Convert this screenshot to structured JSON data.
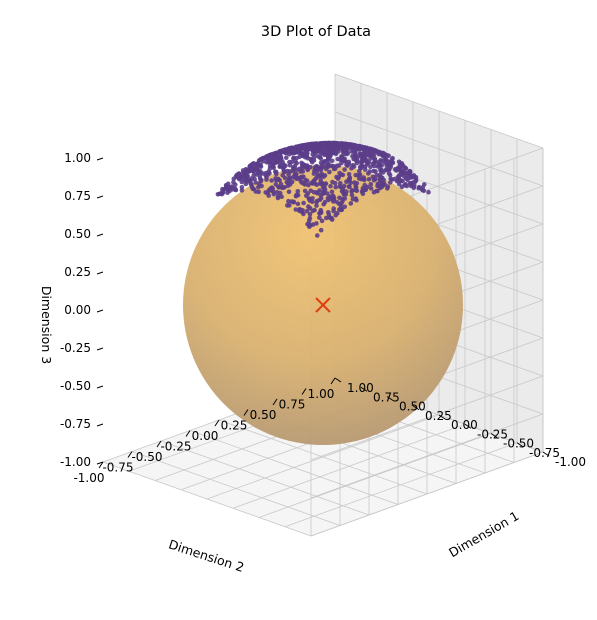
{
  "chart_data": {
    "type": "scatter3d",
    "title": "3D Plot of Data",
    "xlabel": "Dimension 1",
    "ylabel": "Dimension 2",
    "zlabel": "Dimension 3",
    "xlim": [
      -1,
      1
    ],
    "ylim": [
      -1,
      1
    ],
    "zlim": [
      -1,
      1
    ],
    "grid": true,
    "xticks": [
      "-1.00",
      "-0.75",
      "-0.50",
      "-0.25",
      "0.00",
      "0.25",
      "0.50",
      "0.75",
      "1.00"
    ],
    "yticks": [
      "-1.00",
      "-0.75",
      "-0.50",
      "-0.25",
      "0.00",
      "0.25",
      "0.50",
      "0.75",
      "1.00"
    ],
    "zticks": [
      "-1.00",
      "-0.75",
      "-0.50",
      "-0.25",
      "0.00",
      "0.25",
      "0.50",
      "0.75",
      "1.00"
    ],
    "sphere": {
      "center": [
        0,
        0,
        0
      ],
      "radius": 1,
      "color": "#e6b450"
    },
    "points": {
      "color": "#5b3d8a",
      "description_region": {
        "x": [
          -0.5,
          0.5
        ],
        "y": [
          -0.5,
          0.5
        ],
        "z_on_sphere": true
      },
      "count": 1200
    },
    "center_marker": {
      "x": 0,
      "y": 0,
      "z": 0,
      "symbol": "x",
      "color": "#e04010"
    }
  }
}
